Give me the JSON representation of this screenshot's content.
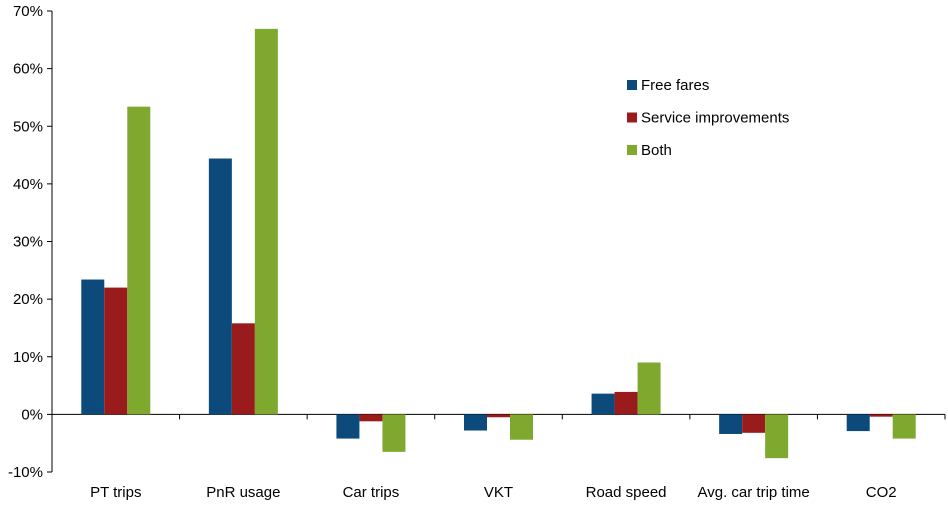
{
  "chart_data": {
    "type": "bar",
    "categories": [
      "PT trips",
      "PnR usage",
      "Car trips",
      "VKT",
      "Road speed",
      "Avg. car trip time",
      "CO2"
    ],
    "series": [
      {
        "name": "Free fares",
        "color": "#0b4a7a",
        "values": [
          23.4,
          44.4,
          -4.2,
          -2.8,
          3.6,
          -3.4,
          -2.9
        ]
      },
      {
        "name": "Service improvements",
        "color": "#9a1b1b",
        "values": [
          22.0,
          15.8,
          -1.2,
          -0.5,
          3.9,
          -3.2,
          -0.4
        ]
      },
      {
        "name": "Both",
        "color": "#7fa82e",
        "values": [
          53.4,
          66.9,
          -6.5,
          -4.4,
          9.0,
          -7.6,
          -4.2
        ]
      }
    ],
    "y_unit": "%",
    "ylim": [
      -10,
      70
    ],
    "yticks": [
      -10,
      0,
      10,
      20,
      30,
      40,
      50,
      60,
      70
    ],
    "ytick_labels": [
      "-10%",
      "0%",
      "10%",
      "20%",
      "30%",
      "40%",
      "50%",
      "60%",
      "70%"
    ],
    "grid": false,
    "legend_position": "top-right",
    "title": "",
    "xlabel": "",
    "ylabel": ""
  }
}
